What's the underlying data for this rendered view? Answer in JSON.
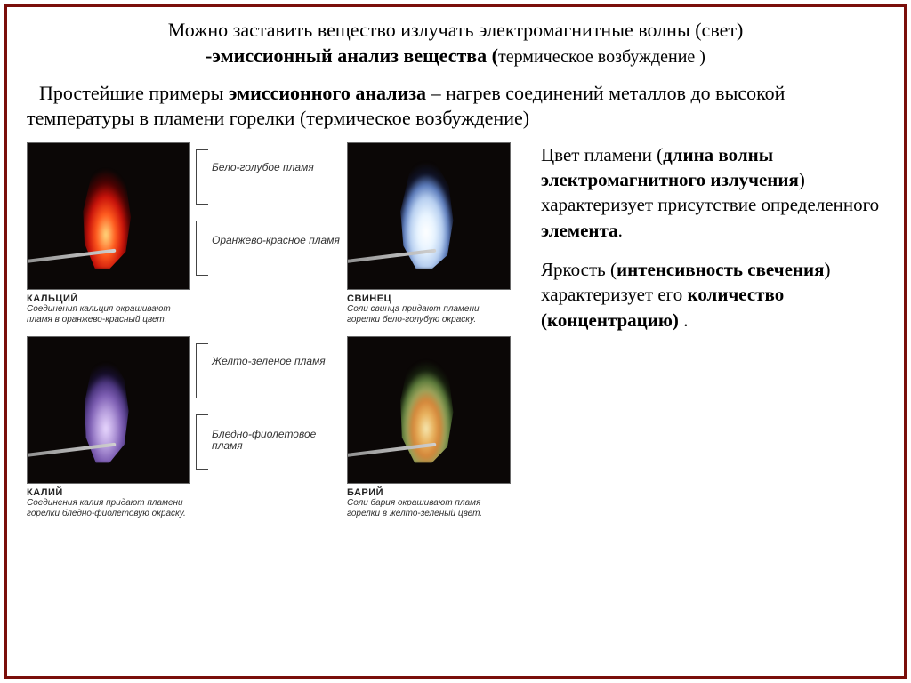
{
  "heading": {
    "line1": "Можно заставить вещество излучать электромагнитные волны (свет)",
    "line2_prefix": "-эмиссионный анализ вещества (",
    "line2_paren": "термическое возбуждение )"
  },
  "intro": {
    "pre": "Простейшие примеры ",
    "bold": "эмиссионного анализа",
    "post": " – нагрев соединений металлов до высокой температуры в пламени горелки (термическое возбуждение)"
  },
  "flames": {
    "calcium": {
      "element": "КАЛЬЦИЙ",
      "desc": "Соединения кальция окрашивают пламя в оранжево-красный цвет.",
      "color_main": "#c8120a"
    },
    "lead": {
      "element": "СВИНЕЦ",
      "desc": "Соли свинца придают пламени горелки бело-голубую окраску.",
      "color_main": "#b7cff0"
    },
    "potassium": {
      "element": "КАЛИЙ",
      "desc": "Соединения калия придают пламени горелки бледно-фиолетовую окраску.",
      "color_main": "#7d5eb3"
    },
    "barium": {
      "element": "БАРИЙ",
      "desc": "Соли бария окрашивают пламя горелки в желто-зеленый цвет.",
      "color_main": "#9aa25a"
    }
  },
  "brackets": {
    "row1_top": "Бело-голубое пламя",
    "row1_bot": "Оранжево-красное пламя",
    "row2_top": "Желто-зеленое пламя",
    "row2_bot": "Бледно-фиолетовое пламя"
  },
  "side": {
    "p1_a": "Цвет пламени (",
    "p1_b": "длина волны электромагнитного излучения",
    "p1_c": ") характеризует присутствие определенного ",
    "p1_d": "элемента",
    "p1_e": ".",
    "p2_a": "Яркость (",
    "p2_b": "интенсивность свечения",
    "p2_c": ") характеризует его ",
    "p2_d": "количество (концентрацию)",
    "p2_e": " ."
  },
  "styling": {
    "page_bg": "#ffffff",
    "border_color": "#7a0e0a",
    "flame_bg": "#0b0706",
    "body_font": "Times New Roman",
    "caption_font": "Arial",
    "heading_fontsize": 22,
    "intro_fontsize": 22,
    "side_fontsize": 21,
    "caption_title_fontsize": 11,
    "caption_desc_fontsize": 10,
    "flame_box_w": 184,
    "flame_box_h": 166
  }
}
